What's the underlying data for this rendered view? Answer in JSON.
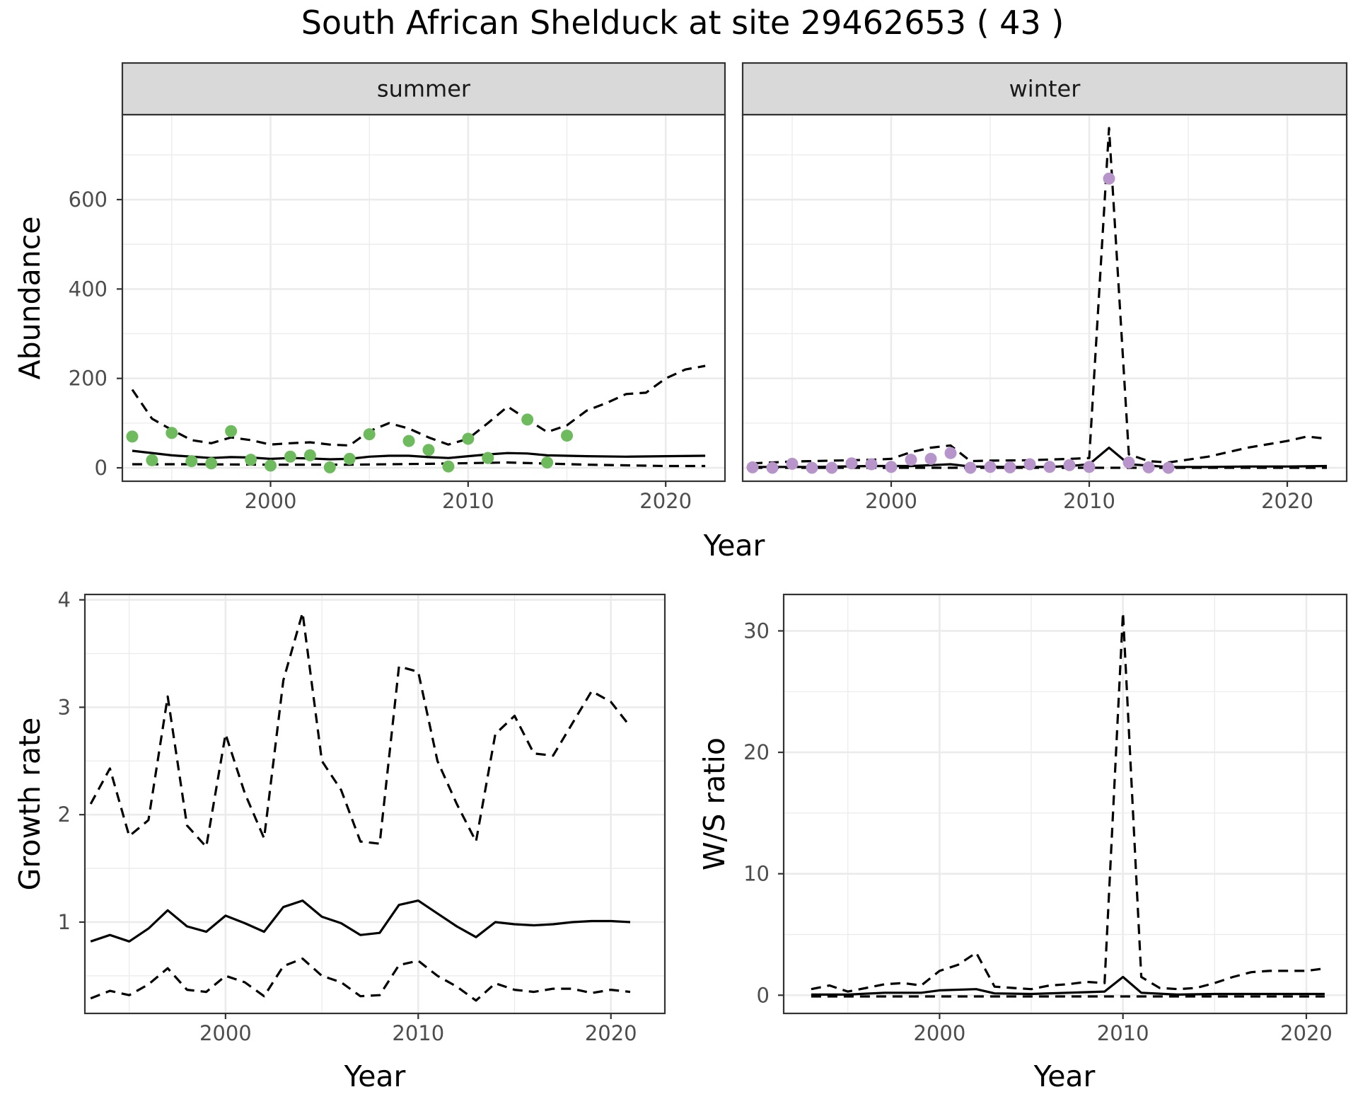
{
  "title": "South African Shelduck at site 29462653 ( 43 )",
  "colors": {
    "summer_points": "#6dbb5d",
    "winter_points": "#b794c9",
    "lines": "#000000",
    "grid_major": "#ebebeb",
    "strip_fill": "#d9d9d9",
    "panel_border": "#333333"
  },
  "chart_data": [
    {
      "type": "line",
      "facet_label": "summer",
      "ylabel": "Abundance",
      "xlabel": "Year",
      "shared_xlabel": "Year",
      "xlim": [
        1992.5,
        2023
      ],
      "ylim": [
        -30,
        790
      ],
      "xticks": [
        2000,
        2010,
        2020
      ],
      "yticks": [
        0,
        200,
        400,
        600
      ],
      "grid": true,
      "points": {
        "x": [
          1993,
          1994,
          1995,
          1996,
          1997,
          1998,
          1999,
          2000,
          2001,
          2002,
          2003,
          2004,
          2005,
          2007,
          2008,
          2009,
          2010,
          2011,
          2013,
          2014,
          2015
        ],
        "y": [
          70,
          17,
          78,
          15,
          10,
          82,
          18,
          5,
          25,
          28,
          1,
          20,
          75,
          60,
          40,
          3,
          65,
          22,
          108,
          12,
          72
        ]
      },
      "series": [
        {
          "style": "solid",
          "x": [
            1993,
            1995,
            1997,
            1998,
            1999,
            2000,
            2001,
            2002,
            2003,
            2004,
            2005,
            2006,
            2007,
            2008,
            2009,
            2010,
            2011,
            2012,
            2013,
            2014,
            2016,
            2018,
            2020,
            2022
          ],
          "y": [
            38,
            28,
            22,
            24,
            23,
            20,
            22,
            21,
            19,
            20,
            25,
            27,
            27,
            24,
            22,
            26,
            30,
            33,
            32,
            28,
            26,
            25,
            26,
            27
          ]
        },
        {
          "style": "dashed",
          "x": [
            1993,
            1994,
            1995,
            1996,
            1997,
            1998,
            1999,
            2000,
            2001,
            2002,
            2003,
            2004,
            2005,
            2006,
            2007,
            2008,
            2009,
            2010,
            2011,
            2012,
            2013,
            2014,
            2015,
            2016,
            2017,
            2018,
            2019,
            2020,
            2021,
            2022
          ],
          "y": [
            175,
            110,
            85,
            62,
            55,
            68,
            62,
            52,
            55,
            57,
            52,
            50,
            82,
            100,
            88,
            68,
            52,
            65,
            100,
            137,
            108,
            80,
            95,
            128,
            145,
            165,
            168,
            200,
            220,
            228
          ]
        },
        {
          "style": "dashed",
          "x": [
            1993,
            1996,
            2000,
            2004,
            2008,
            2012,
            2016,
            2020,
            2022
          ],
          "y": [
            8,
            8,
            7,
            7,
            9,
            12,
            7,
            4,
            4
          ]
        }
      ]
    },
    {
      "type": "line",
      "facet_label": "winter",
      "ylabel": "",
      "xlabel": "",
      "xlim": [
        1992.5,
        2023
      ],
      "ylim": [
        -30,
        790
      ],
      "xticks": [
        2000,
        2010,
        2020
      ],
      "yticks": [
        0,
        200,
        400,
        600
      ],
      "grid": true,
      "points": {
        "x": [
          1993,
          1994,
          1995,
          1996,
          1997,
          1998,
          1999,
          2000,
          2001,
          2002,
          2003,
          2004,
          2005,
          2006,
          2007,
          2008,
          2009,
          2010,
          2011,
          2012,
          2013,
          2014
        ],
        "y": [
          1,
          0,
          9,
          0,
          0,
          10,
          8,
          2,
          18,
          20,
          33,
          0,
          2,
          1,
          8,
          2,
          6,
          2,
          647,
          12,
          1,
          0
        ]
      },
      "series": [
        {
          "style": "solid",
          "x": [
            1993,
            1996,
            1999,
            2001,
            2002,
            2003,
            2004,
            2006,
            2008,
            2009,
            2010,
            2011,
            2012,
            2014,
            2016,
            2018,
            2020,
            2022
          ],
          "y": [
            2,
            2,
            4,
            4,
            6,
            8,
            3,
            2,
            2,
            4,
            8,
            45,
            8,
            2,
            2,
            3,
            3,
            4
          ]
        },
        {
          "style": "dashed",
          "x": [
            1993,
            1995,
            1997,
            1999,
            2000,
            2001,
            2002,
            2003,
            2004,
            2005,
            2007,
            2009,
            2010,
            2011,
            2012,
            2013,
            2014,
            2016,
            2018,
            2020,
            2021,
            2022
          ],
          "y": [
            10,
            14,
            16,
            18,
            20,
            35,
            45,
            50,
            15,
            16,
            17,
            20,
            22,
            760,
            30,
            15,
            12,
            25,
            45,
            60,
            70,
            65
          ]
        },
        {
          "style": "dashed",
          "x": [
            1993,
            2022
          ],
          "y": [
            0,
            0
          ]
        }
      ]
    },
    {
      "type": "line",
      "ylabel": "Growth rate",
      "xlabel": "Year",
      "xlim": [
        1992.7,
        2022.8
      ],
      "ylim": [
        0.15,
        4.05
      ],
      "xticks": [
        2000,
        2010,
        2020
      ],
      "yticks": [
        1,
        2,
        3,
        4
      ],
      "grid": true,
      "series": [
        {
          "style": "solid",
          "x": [
            1993,
            1994,
            1995,
            1996,
            1997,
            1998,
            1999,
            2000,
            2001,
            2002,
            2003,
            2004,
            2005,
            2006,
            2007,
            2008,
            2009,
            2010,
            2011,
            2012,
            2013,
            2014,
            2015,
            2016,
            2017,
            2018,
            2019,
            2020,
            2021
          ],
          "y": [
            0.82,
            0.88,
            0.82,
            0.94,
            1.11,
            0.96,
            0.91,
            1.06,
            0.99,
            0.91,
            1.14,
            1.2,
            1.05,
            0.99,
            0.88,
            0.9,
            1.16,
            1.2,
            1.08,
            0.96,
            0.86,
            1.0,
            0.98,
            0.97,
            0.98,
            1.0,
            1.01,
            1.01,
            1.0
          ]
        },
        {
          "style": "dashed",
          "x": [
            1993,
            1994,
            1995,
            1996,
            1997,
            1998,
            1999,
            2000,
            2001,
            2002,
            2003,
            2004,
            2005,
            2006,
            2007,
            2008,
            2009,
            2010,
            2011,
            2012,
            2013,
            2014,
            2015,
            2016,
            2017,
            2018,
            2019,
            2020,
            2021
          ],
          "y": [
            2.1,
            2.43,
            1.8,
            1.95,
            3.1,
            1.9,
            1.7,
            2.75,
            2.2,
            1.78,
            3.25,
            3.88,
            2.5,
            2.23,
            1.75,
            1.73,
            3.38,
            3.33,
            2.5,
            2.1,
            1.75,
            2.75,
            2.92,
            2.57,
            2.55,
            2.85,
            3.15,
            3.05,
            2.82
          ]
        },
        {
          "style": "dashed",
          "x": [
            1993,
            1994,
            1995,
            1996,
            1997,
            1998,
            1999,
            2000,
            2001,
            2002,
            2003,
            2004,
            2005,
            2006,
            2007,
            2008,
            2009,
            2010,
            2011,
            2012,
            2013,
            2014,
            2015,
            2016,
            2017,
            2018,
            2019,
            2020,
            2021
          ],
          "y": [
            0.29,
            0.36,
            0.32,
            0.42,
            0.57,
            0.37,
            0.35,
            0.5,
            0.44,
            0.31,
            0.59,
            0.66,
            0.5,
            0.44,
            0.31,
            0.32,
            0.6,
            0.64,
            0.5,
            0.4,
            0.27,
            0.43,
            0.37,
            0.35,
            0.38,
            0.38,
            0.34,
            0.37,
            0.35
          ]
        }
      ]
    },
    {
      "type": "line",
      "ylabel": "W/S ratio",
      "xlabel": "Year",
      "xlim": [
        1991.5,
        2022.2
      ],
      "ylim": [
        -1.5,
        33
      ],
      "xticks": [
        2000,
        2010,
        2020
      ],
      "yticks": [
        0,
        10,
        20,
        30
      ],
      "grid": true,
      "series": [
        {
          "style": "solid",
          "x": [
            1993,
            1995,
            1997,
            1999,
            2000,
            2002,
            2003,
            2005,
            2007,
            2009,
            2010,
            2011,
            2013,
            2015,
            2017,
            2019,
            2021
          ],
          "y": [
            0.05,
            0.05,
            0.2,
            0.2,
            0.4,
            0.5,
            0.15,
            0.1,
            0.2,
            0.3,
            1.5,
            0.2,
            0.05,
            0.1,
            0.1,
            0.1,
            0.1
          ]
        },
        {
          "style": "dashed",
          "x": [
            1993,
            1994,
            1995,
            1996,
            1997,
            1998,
            1999,
            2000,
            2001,
            2002,
            2003,
            2004,
            2005,
            2006,
            2007,
            2008,
            2009,
            2010,
            2011,
            2012,
            2013,
            2014,
            2015,
            2016,
            2017,
            2018,
            2019,
            2020,
            2021
          ],
          "y": [
            0.5,
            0.8,
            0.3,
            0.6,
            0.9,
            1.0,
            0.8,
            2.0,
            2.5,
            3.5,
            0.7,
            0.6,
            0.5,
            0.8,
            0.9,
            1.1,
            1.0,
            31.5,
            1.5,
            0.6,
            0.5,
            0.6,
            1.0,
            1.5,
            1.9,
            2.0,
            2.0,
            2.0,
            2.2
          ]
        },
        {
          "style": "dashed",
          "x": [
            1993,
            2000,
            2010,
            2021
          ],
          "y": [
            -0.1,
            -0.1,
            -0.1,
            -0.1
          ]
        }
      ]
    }
  ]
}
